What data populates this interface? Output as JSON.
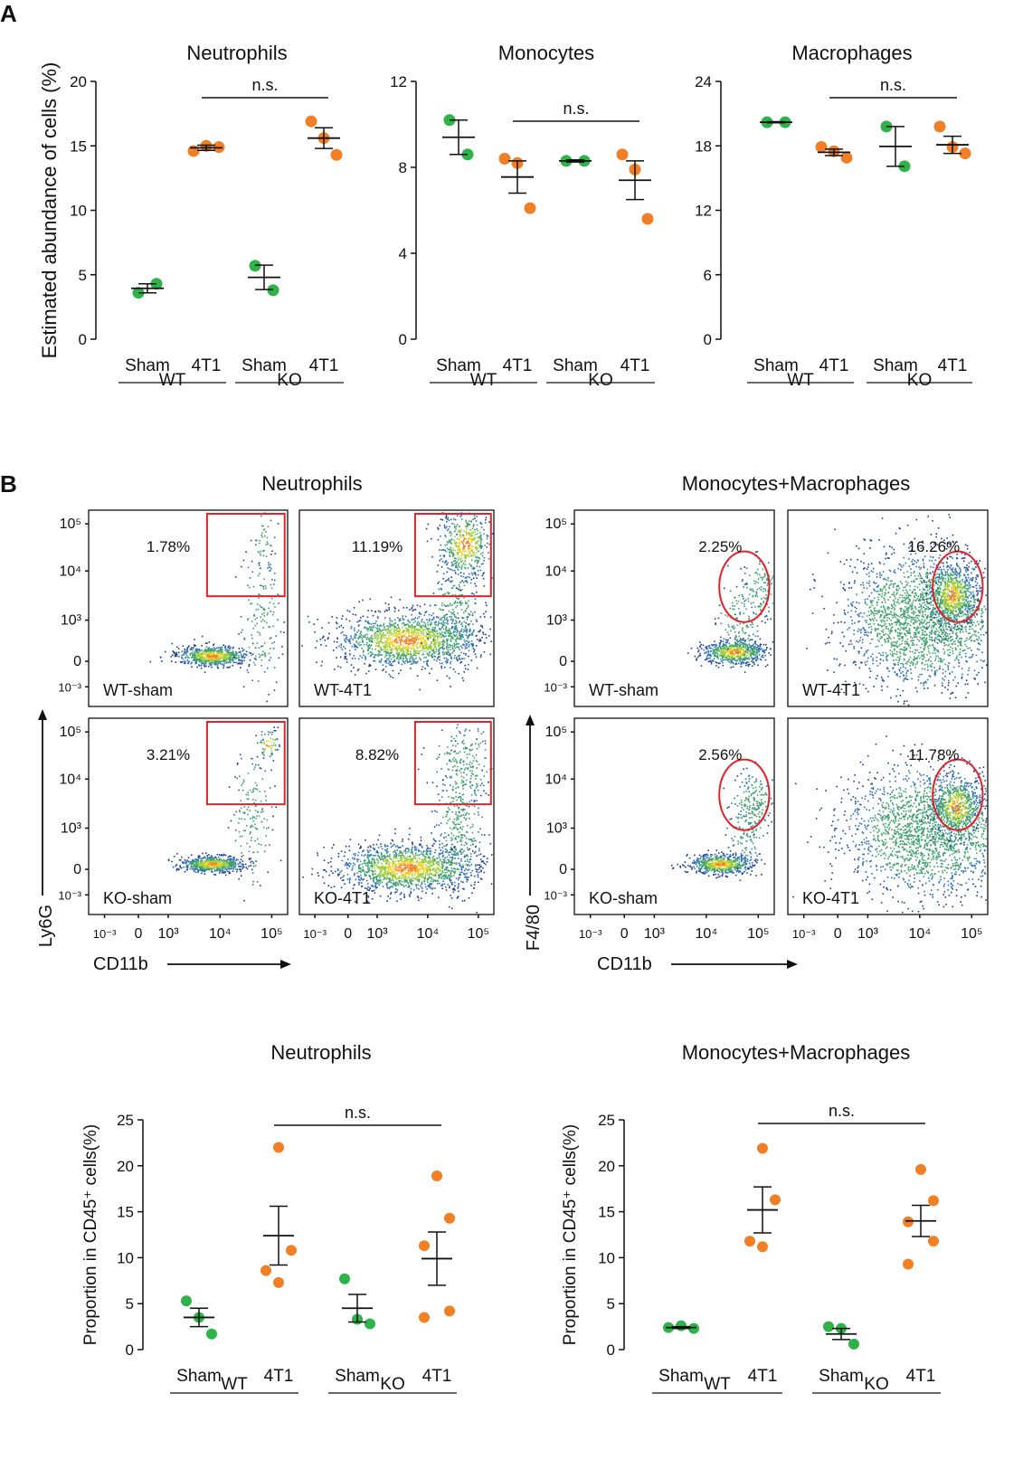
{
  "figure": {
    "panel_a_letter": "A",
    "panel_b_letter": "B",
    "flow_left_title": "Neutrophils",
    "flow_right_title": "Monocytes+Macrophages"
  },
  "colors": {
    "sham": "#2fb24a",
    "tumor": "#f07f25",
    "gate": "#e0242b",
    "axis": "#111111"
  },
  "chart_data": [
    {
      "id": "a1",
      "type": "scatter",
      "title": "Neutrophils",
      "ylabel": "Estimated abundance of cells (%)",
      "ylim": [
        0,
        20
      ],
      "yticks": [
        "0",
        "5",
        "10",
        "15",
        "20"
      ],
      "categories": [
        "Sham",
        "4T1",
        "Sham",
        "4T1"
      ],
      "groups": [
        "WT",
        "KO"
      ],
      "series": [
        {
          "name": "WT Sham",
          "color": "sham",
          "points": [
            3.6,
            4.3
          ],
          "mean": 3.95,
          "sem": 0.35
        },
        {
          "name": "WT 4T1",
          "color": "tumor",
          "points": [
            14.6,
            15.0,
            14.9
          ],
          "mean": 14.85,
          "sem": 0.2
        },
        {
          "name": "KO Sham",
          "color": "sham",
          "points": [
            5.7,
            3.8
          ],
          "mean": 4.8,
          "sem": 0.95
        },
        {
          "name": "KO 4T1",
          "color": "tumor",
          "points": [
            16.9,
            15.6,
            14.3
          ],
          "mean": 15.6,
          "sem": 0.8
        }
      ],
      "annotation": {
        "text": "n.s.",
        "from": 1,
        "to": 3,
        "y": 18.8
      }
    },
    {
      "id": "a2",
      "type": "scatter",
      "title": "Monocytes",
      "ylabel": "",
      "ylim": [
        0,
        12
      ],
      "yticks": [
        "0",
        "4",
        "8",
        "12"
      ],
      "categories": [
        "Sham",
        "4T1",
        "Sham",
        "4T1"
      ],
      "groups": [
        "WT",
        "KO"
      ],
      "series": [
        {
          "name": "WT Sham",
          "color": "sham",
          "points": [
            10.2,
            8.6
          ],
          "mean": 9.4,
          "sem": 0.8
        },
        {
          "name": "WT 4T1",
          "color": "tumor",
          "points": [
            8.4,
            8.2,
            6.1
          ],
          "mean": 7.55,
          "sem": 0.75
        },
        {
          "name": "KO Sham",
          "color": "sham",
          "points": [
            8.3,
            8.3
          ],
          "mean": 8.3,
          "sem": 0.05
        },
        {
          "name": "KO 4T1",
          "color": "tumor",
          "points": [
            8.6,
            7.9,
            5.6
          ],
          "mean": 7.4,
          "sem": 0.9
        }
      ],
      "annotation": {
        "text": "n.s.",
        "from": 1,
        "to": 3,
        "y": 10.4
      }
    },
    {
      "id": "a3",
      "type": "scatter",
      "title": "Macrophages",
      "ylabel": "",
      "ylim": [
        0,
        24
      ],
      "yticks": [
        "0",
        "6",
        "12",
        "18",
        "24"
      ],
      "categories": [
        "Sham",
        "4T1",
        "Sham",
        "4T1"
      ],
      "groups": [
        "WT",
        "KO"
      ],
      "series": [
        {
          "name": "WT Sham",
          "color": "sham",
          "points": [
            20.2,
            20.2
          ],
          "mean": 20.2,
          "sem": 0.05
        },
        {
          "name": "WT 4T1",
          "color": "tumor",
          "points": [
            17.9,
            17.5,
            16.9
          ],
          "mean": 17.4,
          "sem": 0.3
        },
        {
          "name": "KO Sham",
          "color": "sham",
          "points": [
            19.8,
            16.1
          ],
          "mean": 17.95,
          "sem": 1.85
        },
        {
          "name": "KO 4T1",
          "color": "tumor",
          "points": [
            19.8,
            17.9,
            17.3
          ],
          "mean": 18.1,
          "sem": 0.8
        }
      ],
      "annotation": {
        "text": "n.s.",
        "from": 1,
        "to": 3,
        "y": 22.5
      }
    },
    {
      "id": "b1",
      "type": "scatter",
      "title": "Neutrophils",
      "ylabel": "Proportion in CD45⁺ cells(%)",
      "ylim": [
        0,
        25
      ],
      "yticks": [
        "0",
        "5",
        "10",
        "15",
        "20",
        "25"
      ],
      "categories": [
        "Sham",
        "4T1",
        "Sham",
        "4T1"
      ],
      "groups": [
        "WT",
        "KO"
      ],
      "series": [
        {
          "name": "WT Sham",
          "color": "sham",
          "points": [
            5.3,
            3.5,
            1.7
          ],
          "mean": 3.5,
          "sem": 1.0
        },
        {
          "name": "WT 4T1",
          "color": "tumor",
          "points": [
            22.0,
            10.8,
            8.6,
            7.3
          ],
          "mean": 12.4,
          "sem": 3.2
        },
        {
          "name": "KO Sham",
          "color": "sham",
          "points": [
            7.7,
            3.3,
            2.8
          ],
          "mean": 4.5,
          "sem": 1.5
        },
        {
          "name": "KO 4T1",
          "color": "tumor",
          "points": [
            18.9,
            14.3,
            11.3,
            4.2,
            3.5
          ],
          "mean": 9.9,
          "sem": 2.9
        }
      ],
      "annotation": {
        "text": "n.s.",
        "from": 1,
        "to": 3,
        "y": 24.2
      }
    },
    {
      "id": "b2",
      "type": "scatter",
      "title": "Monocytes+Macrophages",
      "ylabel": "Proportion in CD45⁺ cells(%)",
      "ylim": [
        0,
        25
      ],
      "yticks": [
        "0",
        "5",
        "10",
        "15",
        "20",
        "25"
      ],
      "categories": [
        "Sham",
        "4T1",
        "Sham",
        "4T1"
      ],
      "groups": [
        "WT",
        "KO"
      ],
      "series": [
        {
          "name": "WT Sham",
          "color": "sham",
          "points": [
            2.4,
            2.6,
            2.3
          ],
          "mean": 2.4,
          "sem": 0.1
        },
        {
          "name": "WT 4T1",
          "color": "tumor",
          "points": [
            21.9,
            16.3,
            11.8,
            11.2
          ],
          "mean": 15.2,
          "sem": 2.5
        },
        {
          "name": "KO Sham",
          "color": "sham",
          "points": [
            2.5,
            2.3,
            0.6
          ],
          "mean": 1.7,
          "sem": 0.6
        },
        {
          "name": "KO 4T1",
          "color": "tumor",
          "points": [
            19.6,
            16.2,
            13.9,
            11.8,
            9.3
          ],
          "mean": 14.0,
          "sem": 1.7
        }
      ],
      "annotation": {
        "text": "n.s.",
        "from": 1,
        "to": 3,
        "y": 24.3
      }
    }
  ],
  "flow": {
    "neutrophil_ylabel": "Ly6G",
    "macrophage_ylabel": "F4/80",
    "xlabel": "CD11b",
    "tick_labels": [
      "10⁻³",
      "0",
      "10³",
      "10⁴",
      "10⁵"
    ],
    "plots": [
      {
        "id": "n1",
        "label": "WT-sham",
        "percent": "1.78%",
        "gate": "rect"
      },
      {
        "id": "n2",
        "label": "WT-4T1",
        "percent": "11.19%",
        "gate": "rect"
      },
      {
        "id": "n3",
        "label": "KO-sham",
        "percent": "3.21%",
        "gate": "rect"
      },
      {
        "id": "n4",
        "label": "KO-4T1",
        "percent": "8.82%",
        "gate": "rect"
      },
      {
        "id": "m1",
        "label": "WT-sham",
        "percent": "2.25%",
        "gate": "ellipse"
      },
      {
        "id": "m2",
        "label": "WT-4T1",
        "percent": "16.26%",
        "gate": "ellipse"
      },
      {
        "id": "m3",
        "label": "KO-sham",
        "percent": "2.56%",
        "gate": "ellipse"
      },
      {
        "id": "m4",
        "label": "KO-4T1",
        "percent": "11.78%",
        "gate": "ellipse"
      }
    ]
  }
}
